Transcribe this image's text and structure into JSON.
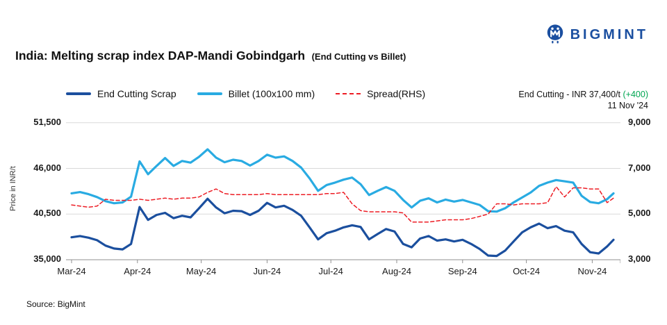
{
  "header": {
    "title_main": "India: Melting scrap index DAP-Mandi Gobindgarh",
    "title_suffix": "(End Cutting vs Billet)",
    "brand": "BIGMINT"
  },
  "legend": [
    {
      "label": "End Cutting Scrap",
      "color": "#1b4f9e",
      "style": "solid"
    },
    {
      "label": "Billet (100x100 mm)",
      "color": "#29abe2",
      "style": "solid"
    },
    {
      "label": "Spread(RHS)",
      "color": "#ed1c24",
      "style": "dashed"
    }
  ],
  "annotation": {
    "line1_prefix": "End Cutting - INR 37,400/t ",
    "line1_change": "(+400)",
    "line2": "11 Nov '24",
    "change_color": "#00a651"
  },
  "source": "Source: BigMint",
  "colors": {
    "end_cutting": "#1b4f9e",
    "billet": "#29abe2",
    "spread": "#ed1c24",
    "gridline": "#d9d9d9",
    "axis": "#8f8f8f",
    "brand_navy": "#1b4fa0",
    "gain_green": "#00a651"
  },
  "chart_data": {
    "type": "line",
    "title": "India: Melting scrap index DAP-Mandi Gobindgarh (End Cutting vs Billet)",
    "ylabel_left": "Price in INR/t",
    "grid": true,
    "legend_position": "top",
    "latest_point": {
      "series": "End Cutting Scrap",
      "date": "11 Nov '24",
      "value": 37400,
      "change": 400
    },
    "y_left": {
      "range": [
        35000,
        51500
      ],
      "ticks": [
        35000,
        40500,
        46000,
        51500
      ],
      "labels": [
        "35,000",
        "40,500",
        "46,000",
        "51,500"
      ]
    },
    "y_right": {
      "range": [
        3000,
        9000
      ],
      "ticks": [
        3000,
        5000,
        7000,
        9000
      ],
      "labels": [
        "3,000",
        "5,000",
        "7,000",
        "9,000"
      ]
    },
    "x_axis": {
      "labels": [
        "Mar-24",
        "Apr-24",
        "May-24",
        "Jun-24",
        "Jul-24",
        "Aug-24",
        "Sep-24",
        "Oct-24",
        "Nov-24"
      ],
      "day_offsets": [
        0,
        31,
        61,
        92,
        122,
        153,
        184,
        214,
        245
      ],
      "total_days": 255,
      "sample_interval_days": 4
    },
    "dates": [
      "01-Mar",
      "05-Mar",
      "09-Mar",
      "13-Mar",
      "17-Mar",
      "21-Mar",
      "25-Mar",
      "29-Mar",
      "02-Apr",
      "06-Apr",
      "10-Apr",
      "14-Apr",
      "18-Apr",
      "22-Apr",
      "26-Apr",
      "30-Apr",
      "04-May",
      "08-May",
      "12-May",
      "16-May",
      "20-May",
      "24-May",
      "28-May",
      "01-Jun",
      "05-Jun",
      "09-Jun",
      "13-Jun",
      "17-Jun",
      "21-Jun",
      "25-Jun",
      "29-Jun",
      "03-Jul",
      "07-Jul",
      "11-Jul",
      "15-Jul",
      "19-Jul",
      "23-Jul",
      "27-Jul",
      "31-Jul",
      "04-Aug",
      "08-Aug",
      "12-Aug",
      "16-Aug",
      "20-Aug",
      "24-Aug",
      "28-Aug",
      "01-Sep",
      "05-Sep",
      "09-Sep",
      "13-Sep",
      "17-Sep",
      "21-Sep",
      "25-Sep",
      "29-Sep",
      "03-Oct",
      "07-Oct",
      "11-Oct",
      "15-Oct",
      "19-Oct",
      "23-Oct",
      "27-Oct",
      "31-Oct",
      "04-Nov",
      "08-Nov",
      "11-Nov"
    ],
    "series": [
      {
        "name": "End Cutting Scrap",
        "axis": "left",
        "color": "#1b4f9e",
        "dash": false,
        "values": [
          37700,
          37850,
          37650,
          37350,
          36700,
          36350,
          36250,
          36900,
          41350,
          39800,
          40400,
          40650,
          40000,
          40300,
          40100,
          41200,
          42350,
          41300,
          40600,
          40900,
          40850,
          40400,
          40900,
          41850,
          41300,
          41500,
          41000,
          40300,
          38900,
          37450,
          38200,
          38500,
          38900,
          39150,
          38950,
          37450,
          38100,
          38700,
          38400,
          36900,
          36500,
          37550,
          37850,
          37300,
          37450,
          37200,
          37400,
          36900,
          36300,
          35500,
          35450,
          36100,
          37200,
          38300,
          38900,
          39350,
          38800,
          39050,
          38500,
          38300,
          36900,
          35900,
          35750,
          36600,
          37400
        ]
      },
      {
        "name": "Billet (100x100 mm)",
        "axis": "left",
        "color": "#29abe2",
        "dash": false,
        "values": [
          43000,
          43150,
          42900,
          42550,
          42050,
          41800,
          41900,
          42600,
          46850,
          45300,
          46300,
          47250,
          46300,
          46900,
          46700,
          47400,
          48300,
          47300,
          46750,
          47050,
          46900,
          46350,
          46900,
          47650,
          47300,
          47450,
          46900,
          46100,
          44800,
          43300,
          44000,
          44300,
          44650,
          44900,
          44100,
          42800,
          43300,
          43750,
          43300,
          42200,
          41300,
          42100,
          42400,
          41900,
          42250,
          42000,
          42200,
          41900,
          41600,
          40850,
          40800,
          41200,
          41900,
          42500,
          43100,
          43900,
          44300,
          44600,
          44450,
          44300,
          42700,
          41950,
          41800,
          42300,
          43000
        ]
      },
      {
        "name": "Spread(RHS)",
        "axis": "right",
        "color": "#ed1c24",
        "dash": true,
        "values": [
          5400,
          5350,
          5300,
          5350,
          5650,
          5600,
          5600,
          5600,
          5650,
          5600,
          5650,
          5700,
          5650,
          5700,
          5700,
          5750,
          5950,
          6100,
          5900,
          5850,
          5850,
          5850,
          5850,
          5900,
          5850,
          5850,
          5850,
          5850,
          5850,
          5850,
          5900,
          5900,
          5950,
          5450,
          5150,
          5100,
          5100,
          5100,
          5100,
          5050,
          4650,
          4650,
          4650,
          4700,
          4750,
          4750,
          4750,
          4800,
          4900,
          5000,
          5450,
          5450,
          5400,
          5450,
          5450,
          5450,
          5500,
          6200,
          5750,
          6150,
          6150,
          6100,
          6100,
          5500,
          5700
        ]
      }
    ]
  }
}
